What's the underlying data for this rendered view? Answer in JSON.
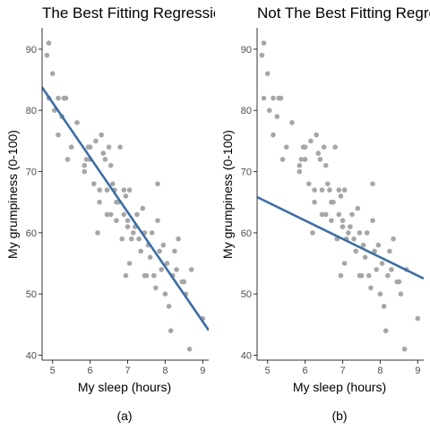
{
  "colors": {
    "points": "#a6a6a6",
    "line": "#3c6ea6",
    "axis": "#333333"
  },
  "chart_data": [
    {
      "type": "scatter",
      "title": "The Best Fitting Regression Line",
      "xlabel": "My sleep (hours)",
      "ylabel": "My grumpiness (0-100)",
      "caption": "(a)",
      "xlim": [
        4.72,
        9.16
      ],
      "ylim": [
        39.2,
        93.5
      ],
      "xticks": [
        5,
        6,
        7,
        8,
        9
      ],
      "yticks": [
        40,
        50,
        60,
        70,
        80,
        90
      ],
      "grid": false,
      "line": {
        "intercept": 125.96,
        "slope": -8.94
      },
      "points": [
        [
          4.85,
          89
        ],
        [
          4.9,
          91
        ],
        [
          4.9,
          82
        ],
        [
          5.0,
          86
        ],
        [
          5.05,
          80
        ],
        [
          5.15,
          82
        ],
        [
          5.15,
          76
        ],
        [
          5.25,
          79
        ],
        [
          5.3,
          82
        ],
        [
          5.35,
          82
        ],
        [
          5.4,
          72
        ],
        [
          5.5,
          74
        ],
        [
          5.65,
          78
        ],
        [
          5.85,
          71
        ],
        [
          5.85,
          70
        ],
        [
          5.9,
          72
        ],
        [
          5.95,
          74
        ],
        [
          6.0,
          74
        ],
        [
          6.0,
          72
        ],
        [
          6.1,
          68
        ],
        [
          6.15,
          75
        ],
        [
          6.2,
          60
        ],
        [
          6.25,
          67
        ],
        [
          6.25,
          65
        ],
        [
          6.3,
          76
        ],
        [
          6.35,
          73
        ],
        [
          6.4,
          72
        ],
        [
          6.45,
          63
        ],
        [
          6.45,
          67
        ],
        [
          6.5,
          74
        ],
        [
          6.55,
          71
        ],
        [
          6.55,
          63
        ],
        [
          6.6,
          68
        ],
        [
          6.65,
          67
        ],
        [
          6.7,
          62
        ],
        [
          6.7,
          65
        ],
        [
          6.75,
          65
        ],
        [
          6.8,
          74
        ],
        [
          6.85,
          59
        ],
        [
          6.9,
          67
        ],
        [
          6.9,
          63
        ],
        [
          6.95,
          53
        ],
        [
          6.95,
          66
        ],
        [
          7.0,
          61
        ],
        [
          7.0,
          62
        ],
        [
          7.05,
          55
        ],
        [
          7.05,
          67
        ],
        [
          7.1,
          59
        ],
        [
          7.15,
          60
        ],
        [
          7.2,
          61
        ],
        [
          7.25,
          63
        ],
        [
          7.3,
          59
        ],
        [
          7.35,
          57
        ],
        [
          7.4,
          64
        ],
        [
          7.45,
          53
        ],
        [
          7.45,
          60
        ],
        [
          7.5,
          53
        ],
        [
          7.55,
          58
        ],
        [
          7.6,
          56
        ],
        [
          7.65,
          60
        ],
        [
          7.7,
          53
        ],
        [
          7.75,
          51
        ],
        [
          7.8,
          68
        ],
        [
          7.8,
          62
        ],
        [
          7.85,
          57
        ],
        [
          7.9,
          54
        ],
        [
          7.95,
          58
        ],
        [
          8.0,
          50
        ],
        [
          8.05,
          55
        ],
        [
          8.1,
          48
        ],
        [
          8.15,
          44
        ],
        [
          8.2,
          53
        ],
        [
          8.25,
          57
        ],
        [
          8.3,
          54
        ],
        [
          8.35,
          59
        ],
        [
          8.45,
          52
        ],
        [
          8.5,
          52
        ],
        [
          8.55,
          50
        ],
        [
          8.65,
          41
        ],
        [
          8.7,
          54
        ],
        [
          9.0,
          46
        ]
      ]
    },
    {
      "type": "scatter",
      "title": "Not The Best Fitting Regression Line",
      "xlabel": "My sleep (hours)",
      "ylabel": "My grumpiness (0-100)",
      "caption": "(b)",
      "xlim": [
        4.72,
        9.16
      ],
      "ylim": [
        39.2,
        93.5
      ],
      "xticks": [
        5,
        6,
        7,
        8,
        9
      ],
      "yticks": [
        40,
        50,
        60,
        70,
        80,
        90
      ],
      "grid": false,
      "line": {
        "intercept": 80.0,
        "slope": -3.0
      },
      "points": [
        [
          4.85,
          89
        ],
        [
          4.9,
          91
        ],
        [
          4.9,
          82
        ],
        [
          5.0,
          86
        ],
        [
          5.05,
          80
        ],
        [
          5.15,
          82
        ],
        [
          5.15,
          76
        ],
        [
          5.25,
          79
        ],
        [
          5.3,
          82
        ],
        [
          5.35,
          82
        ],
        [
          5.4,
          72
        ],
        [
          5.5,
          74
        ],
        [
          5.65,
          78
        ],
        [
          5.85,
          71
        ],
        [
          5.85,
          70
        ],
        [
          5.9,
          72
        ],
        [
          5.95,
          74
        ],
        [
          6.0,
          74
        ],
        [
          6.0,
          72
        ],
        [
          6.1,
          68
        ],
        [
          6.15,
          75
        ],
        [
          6.2,
          60
        ],
        [
          6.25,
          67
        ],
        [
          6.25,
          65
        ],
        [
          6.3,
          76
        ],
        [
          6.35,
          73
        ],
        [
          6.4,
          72
        ],
        [
          6.45,
          63
        ],
        [
          6.45,
          67
        ],
        [
          6.5,
          74
        ],
        [
          6.55,
          71
        ],
        [
          6.55,
          63
        ],
        [
          6.6,
          68
        ],
        [
          6.65,
          67
        ],
        [
          6.7,
          62
        ],
        [
          6.7,
          65
        ],
        [
          6.75,
          65
        ],
        [
          6.8,
          74
        ],
        [
          6.85,
          59
        ],
        [
          6.9,
          67
        ],
        [
          6.9,
          63
        ],
        [
          6.95,
          53
        ],
        [
          6.95,
          66
        ],
        [
          7.0,
          61
        ],
        [
          7.0,
          62
        ],
        [
          7.05,
          55
        ],
        [
          7.05,
          67
        ],
        [
          7.1,
          59
        ],
        [
          7.15,
          60
        ],
        [
          7.2,
          61
        ],
        [
          7.25,
          63
        ],
        [
          7.3,
          59
        ],
        [
          7.35,
          57
        ],
        [
          7.4,
          64
        ],
        [
          7.45,
          53
        ],
        [
          7.45,
          60
        ],
        [
          7.5,
          53
        ],
        [
          7.55,
          58
        ],
        [
          7.6,
          56
        ],
        [
          7.65,
          60
        ],
        [
          7.7,
          53
        ],
        [
          7.75,
          51
        ],
        [
          7.8,
          68
        ],
        [
          7.8,
          62
        ],
        [
          7.85,
          57
        ],
        [
          7.9,
          54
        ],
        [
          7.95,
          58
        ],
        [
          8.0,
          50
        ],
        [
          8.05,
          55
        ],
        [
          8.1,
          48
        ],
        [
          8.15,
          44
        ],
        [
          8.2,
          53
        ],
        [
          8.25,
          57
        ],
        [
          8.3,
          54
        ],
        [
          8.35,
          59
        ],
        [
          8.45,
          52
        ],
        [
          8.5,
          52
        ],
        [
          8.55,
          50
        ],
        [
          8.65,
          41
        ],
        [
          8.7,
          54
        ],
        [
          9.0,
          46
        ]
      ]
    }
  ]
}
